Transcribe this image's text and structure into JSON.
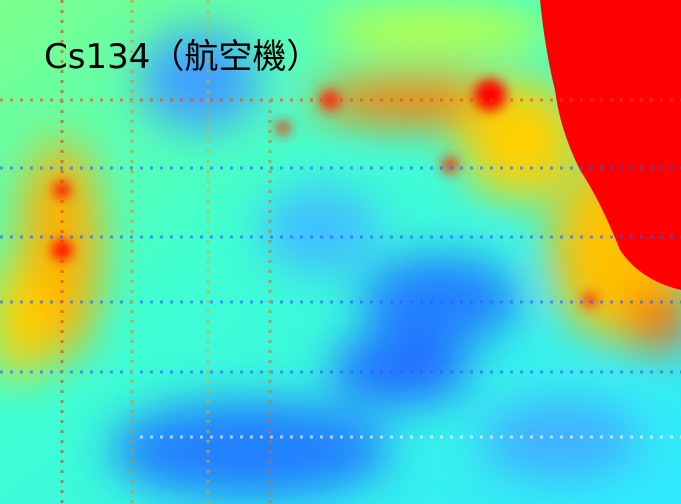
{
  "title": "Cs134（航空機）"
}
